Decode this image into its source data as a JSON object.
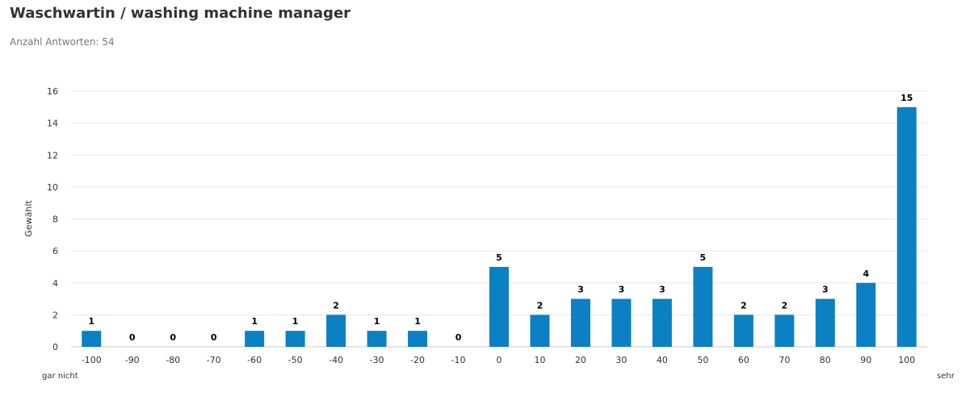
{
  "header": {
    "title": "Waschwartin / washing machine manager",
    "subtitle": "Anzahl Antworten: 54"
  },
  "chart_data": {
    "type": "bar",
    "categories": [
      "-100",
      "-90",
      "-80",
      "-70",
      "-60",
      "-50",
      "-40",
      "-30",
      "-20",
      "-10",
      "0",
      "10",
      "20",
      "30",
      "40",
      "50",
      "60",
      "70",
      "80",
      "90",
      "100"
    ],
    "values": [
      1,
      0,
      0,
      0,
      1,
      1,
      2,
      1,
      1,
      0,
      5,
      2,
      3,
      3,
      3,
      5,
      2,
      2,
      3,
      4,
      15
    ],
    "ylabel": "Gewählt",
    "xlabel": "",
    "ylim": [
      0,
      16
    ],
    "yticks": [
      0,
      2,
      4,
      6,
      8,
      10,
      12,
      14,
      16
    ],
    "scale_left_label": "gar nicht",
    "scale_right_label": "sehr",
    "bar_color": "#0b80c3",
    "grid": true,
    "data_labels": true
  }
}
